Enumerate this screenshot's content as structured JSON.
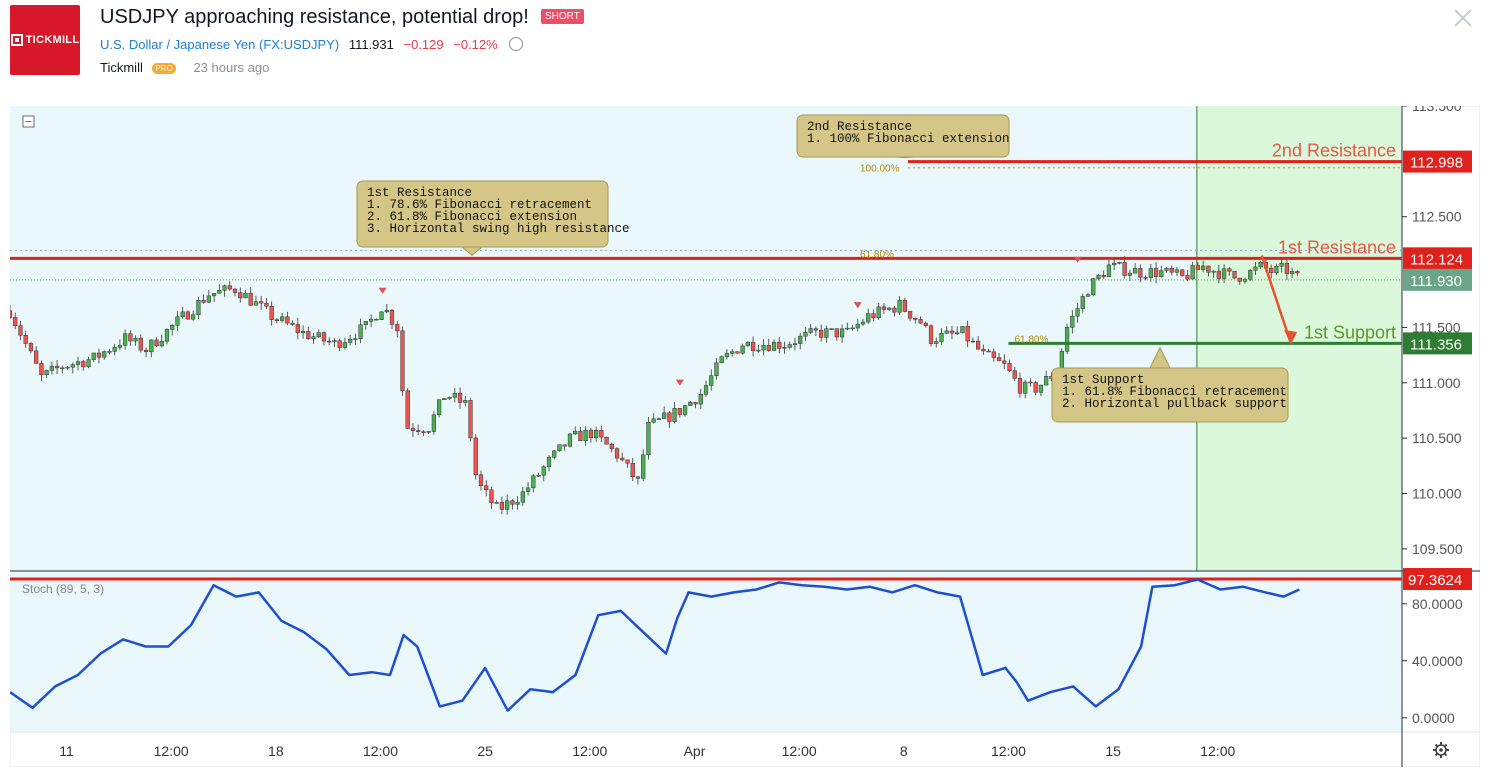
{
  "header": {
    "logo_text": "TICKMILL",
    "title": "USDJPY approaching resistance, potential drop!",
    "badge": "SHORT",
    "symbol_name": "U.S. Dollar / Japanese Yen",
    "symbol_code": "(FX:USDJPY)",
    "price": "111.931",
    "change": "−0.129",
    "change_pct": "−0.12%",
    "author": "Tickmill",
    "author_badge": "PRO",
    "time_ago": "23 hours ago"
  },
  "chart_data": {
    "type": "line",
    "colors": {
      "up": "#4caf50",
      "down": "#ef5350",
      "resistance": "#e0201b",
      "support": "#2e7d32",
      "stoch": "#1e4fd0",
      "zone": "#dcf8dc",
      "bg": "#eaf7fb"
    },
    "price_panel": {
      "ylim": [
        109.3,
        113.5
      ],
      "y_ticks": [
        "113.500",
        "112.500",
        "111.500",
        "111.000",
        "110.500",
        "110.000",
        "109.500"
      ],
      "close_path": [
        {
          "x": 0.0,
          "y": 111.65
        },
        {
          "x": 1.5,
          "y": 111.05
        },
        {
          "x": 2.5,
          "y": 111.15
        },
        {
          "x": 4.0,
          "y": 111.22
        },
        {
          "x": 5.5,
          "y": 111.4
        },
        {
          "x": 6.5,
          "y": 111.3
        },
        {
          "x": 8.0,
          "y": 111.55
        },
        {
          "x": 9.5,
          "y": 111.8
        },
        {
          "x": 10.8,
          "y": 111.85
        },
        {
          "x": 12.5,
          "y": 111.6
        },
        {
          "x": 14.0,
          "y": 111.45
        },
        {
          "x": 15.5,
          "y": 111.35
        },
        {
          "x": 17.0,
          "y": 111.5
        },
        {
          "x": 17.8,
          "y": 111.7
        },
        {
          "x": 18.5,
          "y": 111.5
        },
        {
          "x": 18.9,
          "y": 110.6
        },
        {
          "x": 20.0,
          "y": 110.6
        },
        {
          "x": 20.8,
          "y": 110.9
        },
        {
          "x": 21.8,
          "y": 110.8
        },
        {
          "x": 22.3,
          "y": 110.1
        },
        {
          "x": 23.3,
          "y": 109.85
        },
        {
          "x": 24.5,
          "y": 110.0
        },
        {
          "x": 25.8,
          "y": 110.3
        },
        {
          "x": 26.8,
          "y": 110.5
        },
        {
          "x": 27.8,
          "y": 110.55
        },
        {
          "x": 29.0,
          "y": 110.35
        },
        {
          "x": 30.0,
          "y": 110.1
        },
        {
          "x": 30.5,
          "y": 110.6
        },
        {
          "x": 32.0,
          "y": 110.75
        },
        {
          "x": 33.0,
          "y": 110.9
        },
        {
          "x": 34.0,
          "y": 111.2
        },
        {
          "x": 35.0,
          "y": 111.35
        },
        {
          "x": 37.0,
          "y": 111.35
        },
        {
          "x": 38.5,
          "y": 111.45
        },
        {
          "x": 40.0,
          "y": 111.45
        },
        {
          "x": 41.0,
          "y": 111.6
        },
        {
          "x": 42.5,
          "y": 111.7
        },
        {
          "x": 43.5,
          "y": 111.55
        },
        {
          "x": 44.0,
          "y": 111.4
        },
        {
          "x": 45.5,
          "y": 111.45
        },
        {
          "x": 46.5,
          "y": 111.25
        },
        {
          "x": 47.5,
          "y": 111.15
        },
        {
          "x": 48.3,
          "y": 110.95
        },
        {
          "x": 49.0,
          "y": 110.95
        },
        {
          "x": 50.0,
          "y": 111.1
        },
        {
          "x": 50.5,
          "y": 111.5
        },
        {
          "x": 51.5,
          "y": 111.85
        },
        {
          "x": 52.5,
          "y": 112.05
        },
        {
          "x": 54.0,
          "y": 112.0
        },
        {
          "x": 55.0,
          "y": 112.0
        },
        {
          "x": 56.0,
          "y": 111.95
        },
        {
          "x": 57.0,
          "y": 112.05
        },
        {
          "x": 58.5,
          "y": 111.95
        },
        {
          "x": 59.3,
          "y": 112.0
        },
        {
          "x": 59.8,
          "y": 112.05
        },
        {
          "x": 60.3,
          "y": 112.0
        },
        {
          "x": 60.9,
          "y": 112.03
        },
        {
          "x": 61.6,
          "y": 111.93
        }
      ],
      "levels": [
        {
          "label": "2nd Resistance",
          "value": 112.998,
          "tag": "112.998",
          "fib": "100.00%"
        },
        {
          "label": "1st Resistance",
          "value": 112.124,
          "tag": "112.124",
          "fib": "61.80%"
        },
        {
          "label": "1st Support",
          "value": 111.356,
          "tag": "111.356",
          "fib": "61.80%"
        }
      ],
      "current_price": {
        "value": 111.93,
        "tag": "111.930"
      },
      "annotations": [
        {
          "title": "2nd Resistance",
          "lines": [
            "1. 100% Fibonacci extension"
          ]
        },
        {
          "title": "1st Resistance",
          "lines": [
            "1. 78.6% Fibonacci retracement",
            "2. 61.8% Fibonacci extension",
            "3. Horizontal swing high resistance"
          ]
        },
        {
          "title": "1st Support",
          "lines": [
            "1. 61.8% Fibonacci retracement",
            "2. Horizontal pullback support"
          ]
        }
      ],
      "projection": [
        {
          "x": 59.8,
          "y": 112.15
        },
        {
          "x": 61.2,
          "y": 111.35
        }
      ],
      "x_ticks": [
        {
          "x": 2.7,
          "label": "11"
        },
        {
          "x": 7.7,
          "label": "12:00"
        },
        {
          "x": 12.7,
          "label": "18"
        },
        {
          "x": 17.7,
          "label": "12:00"
        },
        {
          "x": 22.7,
          "label": "25"
        },
        {
          "x": 27.7,
          "label": "12:00"
        },
        {
          "x": 32.7,
          "label": "Apr"
        },
        {
          "x": 37.7,
          "label": "12:00"
        },
        {
          "x": 42.7,
          "label": "8"
        },
        {
          "x": 47.7,
          "label": "12:00"
        },
        {
          "x": 52.7,
          "label": "15"
        },
        {
          "x": 57.7,
          "label": "12:00"
        }
      ],
      "x_range": [
        0,
        66.5
      ],
      "projection_zone_start": 56.7
    },
    "indicator_panel": {
      "label": "Stoch (89, 5, 3)",
      "ylim": [
        -10,
        103
      ],
      "y_ticks": [
        "80.0000",
        "40.0000",
        "0.0000"
      ],
      "level": {
        "value": 97.3624,
        "tag": "97.3624"
      },
      "series": [
        {
          "x": 0,
          "y": 18
        },
        {
          "x": 1,
          "y": 7
        },
        {
          "x": 2,
          "y": 22
        },
        {
          "x": 3,
          "y": 30
        },
        {
          "x": 4,
          "y": 45
        },
        {
          "x": 5,
          "y": 55
        },
        {
          "x": 6,
          "y": 50
        },
        {
          "x": 7,
          "y": 50
        },
        {
          "x": 8,
          "y": 65
        },
        {
          "x": 9,
          "y": 93
        },
        {
          "x": 10,
          "y": 85
        },
        {
          "x": 11,
          "y": 88
        },
        {
          "x": 12,
          "y": 68
        },
        {
          "x": 13,
          "y": 60
        },
        {
          "x": 14,
          "y": 48
        },
        {
          "x": 15,
          "y": 30
        },
        {
          "x": 16,
          "y": 32
        },
        {
          "x": 16.8,
          "y": 30
        },
        {
          "x": 17.4,
          "y": 58
        },
        {
          "x": 18,
          "y": 50
        },
        {
          "x": 19,
          "y": 8
        },
        {
          "x": 20,
          "y": 12
        },
        {
          "x": 21,
          "y": 35
        },
        {
          "x": 22,
          "y": 5
        },
        {
          "x": 23,
          "y": 20
        },
        {
          "x": 24,
          "y": 18
        },
        {
          "x": 25,
          "y": 30
        },
        {
          "x": 26,
          "y": 72
        },
        {
          "x": 27,
          "y": 75
        },
        {
          "x": 28,
          "y": 60
        },
        {
          "x": 29,
          "y": 45
        },
        {
          "x": 29.5,
          "y": 70
        },
        {
          "x": 30,
          "y": 88
        },
        {
          "x": 31,
          "y": 85
        },
        {
          "x": 32,
          "y": 88
        },
        {
          "x": 33,
          "y": 90
        },
        {
          "x": 34,
          "y": 95
        },
        {
          "x": 35,
          "y": 93
        },
        {
          "x": 36,
          "y": 92
        },
        {
          "x": 37,
          "y": 90
        },
        {
          "x": 38,
          "y": 92
        },
        {
          "x": 39,
          "y": 88
        },
        {
          "x": 40,
          "y": 93
        },
        {
          "x": 41,
          "y": 88
        },
        {
          "x": 42,
          "y": 85
        },
        {
          "x": 43,
          "y": 30
        },
        {
          "x": 44,
          "y": 35
        },
        {
          "x": 44.5,
          "y": 25
        },
        {
          "x": 45,
          "y": 12
        },
        {
          "x": 46,
          "y": 18
        },
        {
          "x": 47,
          "y": 22
        },
        {
          "x": 48,
          "y": 8
        },
        {
          "x": 49,
          "y": 20
        },
        {
          "x": 50,
          "y": 50
        },
        {
          "x": 50.5,
          "y": 92
        },
        {
          "x": 51.5,
          "y": 93
        },
        {
          "x": 52.5,
          "y": 97
        },
        {
          "x": 53.5,
          "y": 90
        },
        {
          "x": 54.5,
          "y": 92
        },
        {
          "x": 55.5,
          "y": 88
        },
        {
          "x": 56.3,
          "y": 85
        },
        {
          "x": 57,
          "y": 90
        }
      ]
    }
  }
}
